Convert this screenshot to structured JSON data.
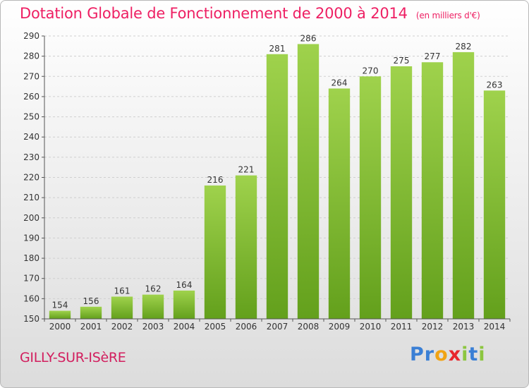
{
  "page": {
    "title": "Dotation Globale de Fonctionnement de 2000 à 2014",
    "unit": "(en milliers d'€)",
    "commune": "GILLY-SUR-ISèRE",
    "logo": {
      "letters": [
        "P",
        "r",
        "o",
        "x",
        "i",
        "t",
        "i"
      ],
      "colors": [
        "#3a7fd5",
        "#3a7fd5",
        "#f1a314",
        "#e8262d",
        "#8cc63f",
        "#3a7fd5",
        "#8cc63f"
      ]
    }
  },
  "chart_data": {
    "type": "bar",
    "title": "Dotation Globale de Fonctionnement de 2000 à 2014",
    "subtitle": "(en milliers d'€)",
    "xlabel": "",
    "ylabel": "",
    "categories": [
      "2000",
      "2001",
      "2002",
      "2003",
      "2004",
      "2005",
      "2006",
      "2007",
      "2008",
      "2009",
      "2010",
      "2011",
      "2012",
      "2013",
      "2014"
    ],
    "values": [
      154,
      156,
      161,
      162,
      164,
      216,
      221,
      281,
      286,
      264,
      270,
      275,
      277,
      282,
      263
    ],
    "ylim": [
      150,
      290
    ],
    "yticks": [
      150,
      160,
      170,
      180,
      190,
      200,
      210,
      220,
      230,
      240,
      250,
      260,
      270,
      280,
      290
    ],
    "grid": true,
    "bar_color": "#7fbf2d",
    "legend": "none"
  }
}
